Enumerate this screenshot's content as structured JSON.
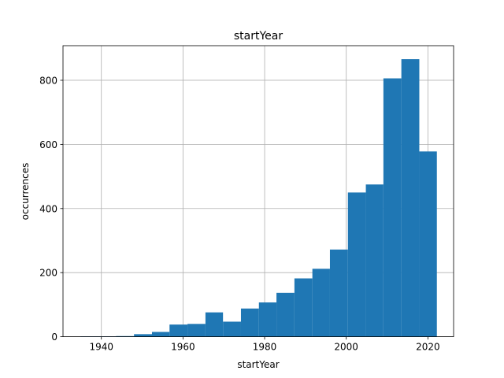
{
  "chart_data": {
    "type": "bar",
    "subtype": "histogram",
    "title": "startYear",
    "xlabel": "startYear",
    "ylabel": "occurrences",
    "xlim": [
      1930.6,
      2026.3
    ],
    "ylim": [
      0,
      908
    ],
    "xticks": [
      1940,
      1960,
      1980,
      2000,
      2020
    ],
    "yticks": [
      0,
      200,
      400,
      600,
      800
    ],
    "grid": true,
    "color": "#1f77b4",
    "bins": [
      {
        "x0": 1934.9,
        "x1": 1939.3,
        "value": 1
      },
      {
        "x0": 1939.3,
        "x1": 1943.6,
        "value": 1
      },
      {
        "x0": 1943.6,
        "x1": 1948.0,
        "value": 2
      },
      {
        "x0": 1948.0,
        "x1": 1952.4,
        "value": 8
      },
      {
        "x0": 1952.4,
        "x1": 1956.7,
        "value": 15
      },
      {
        "x0": 1956.7,
        "x1": 1961.1,
        "value": 38
      },
      {
        "x0": 1961.1,
        "x1": 1965.5,
        "value": 40
      },
      {
        "x0": 1965.5,
        "x1": 1969.8,
        "value": 76
      },
      {
        "x0": 1969.8,
        "x1": 1974.2,
        "value": 47
      },
      {
        "x0": 1974.2,
        "x1": 1978.6,
        "value": 88
      },
      {
        "x0": 1978.6,
        "x1": 1982.9,
        "value": 107
      },
      {
        "x0": 1982.9,
        "x1": 1987.3,
        "value": 137
      },
      {
        "x0": 1987.3,
        "x1": 1991.7,
        "value": 182
      },
      {
        "x0": 1991.7,
        "x1": 1996.0,
        "value": 212
      },
      {
        "x0": 1996.0,
        "x1": 2000.4,
        "value": 272
      },
      {
        "x0": 2000.4,
        "x1": 2004.8,
        "value": 450
      },
      {
        "x0": 2004.8,
        "x1": 2009.1,
        "value": 475
      },
      {
        "x0": 2009.1,
        "x1": 2013.5,
        "value": 806
      },
      {
        "x0": 2013.5,
        "x1": 2017.9,
        "value": 866
      },
      {
        "x0": 2017.9,
        "x1": 2022.2,
        "value": 578
      }
    ]
  }
}
